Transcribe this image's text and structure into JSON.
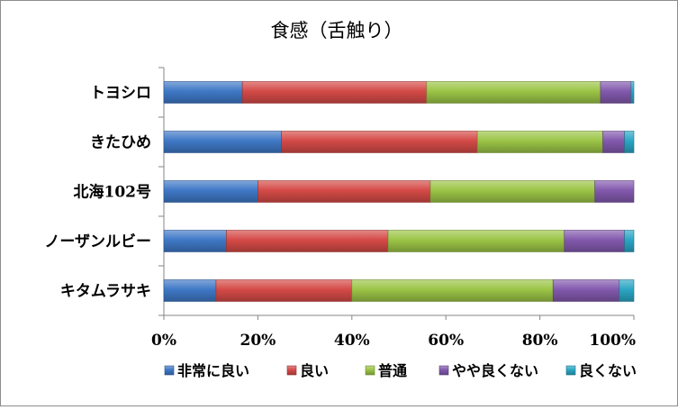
{
  "chart_data": {
    "type": "bar",
    "orientation": "horizontal",
    "stacked": "percent",
    "title": "食感（舌触り）",
    "categories": [
      "トヨシロ",
      "きたひめ",
      "北海102号",
      "ノーザンルビー",
      "キタムラサキ"
    ],
    "series": [
      {
        "name": "非常に良い",
        "color": "#3f78c6",
        "values": [
          16.7,
          25.0,
          20.0,
          13.3,
          11.1
        ]
      },
      {
        "name": "良い",
        "color": "#d44a47",
        "values": [
          39.2,
          41.7,
          36.7,
          34.4,
          28.9
        ]
      },
      {
        "name": "普通",
        "color": "#9bc446",
        "values": [
          37.0,
          26.7,
          35.0,
          37.5,
          42.8
        ]
      },
      {
        "name": "やや良くない",
        "color": "#8259ad",
        "values": [
          6.5,
          4.6,
          8.3,
          12.8,
          14.1
        ]
      },
      {
        "name": "良くない",
        "color": "#2ba6c4",
        "values": [
          0.6,
          2.0,
          0.0,
          2.0,
          3.1
        ]
      }
    ],
    "x_ticks": [
      "0%",
      "20%",
      "40%",
      "60%",
      "80%",
      "100%"
    ],
    "xlim": [
      0,
      100
    ],
    "grid": false,
    "legend_position": "bottom"
  }
}
